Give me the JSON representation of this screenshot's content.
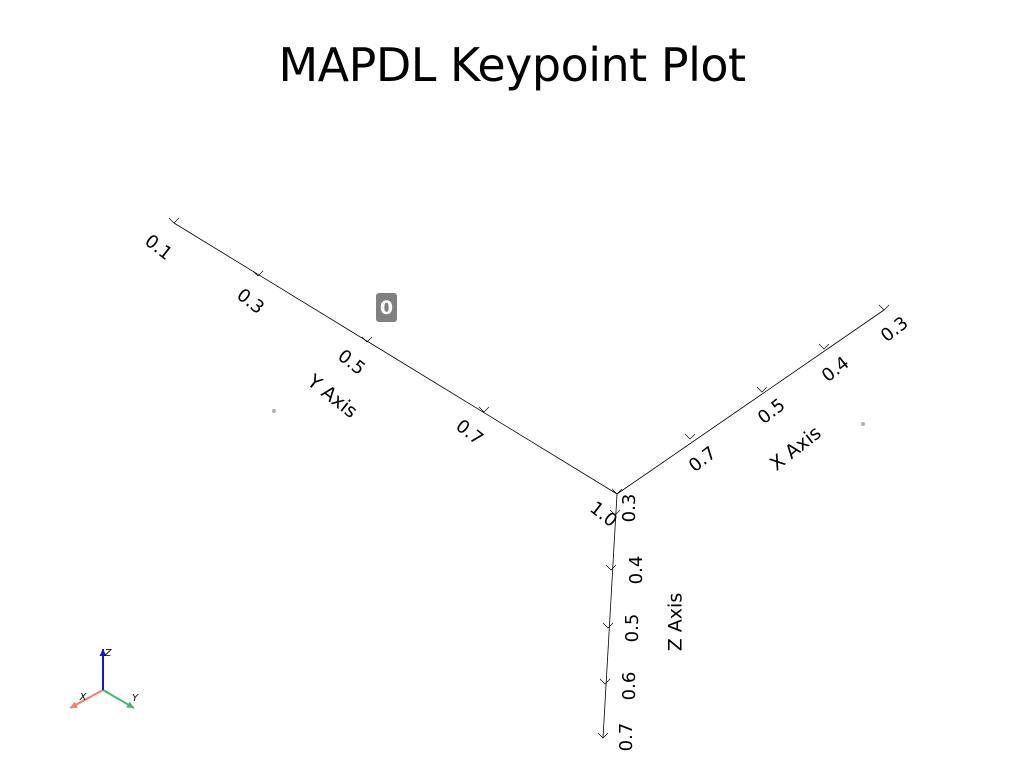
{
  "title": "MAPDL Keypoint Plot",
  "chart_data": {
    "type": "scatter",
    "title": "MAPDL Keypoint Plot",
    "axes": {
      "x": {
        "label": "X Axis",
        "ticks": [
          "0.3",
          "0.4",
          "0.5",
          "0.7"
        ]
      },
      "y": {
        "label": "Y Axis",
        "ticks": [
          "0.1",
          "0.3",
          "0.5",
          "0.7",
          "1.0"
        ]
      },
      "z": {
        "label": "Z Axis",
        "ticks": [
          "0.3",
          "0.4",
          "0.5",
          "0.6",
          "0.7"
        ]
      }
    },
    "keypoints": [
      {
        "label": "0"
      }
    ],
    "orientation_widget": {
      "x": "X",
      "y": "Y",
      "z": "Z"
    },
    "grid": false
  },
  "colors": {
    "axis_line": "#000000",
    "keypoint_label_bg": "#808080",
    "keypoint_label_text": "#ffffff",
    "widget_x": "#f0826b",
    "widget_y": "#46b676",
    "widget_z": "#1414e6"
  }
}
